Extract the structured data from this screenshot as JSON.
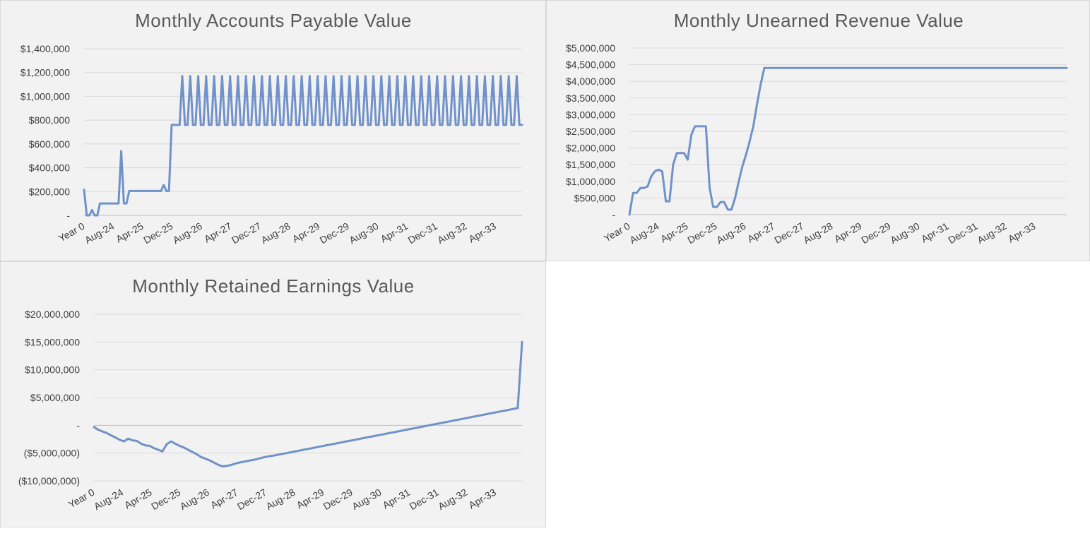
{
  "colors": {
    "line": "#7092c8",
    "panel_bg": "#f2f2f2",
    "grid": "#d9d9d9",
    "text": "#404040",
    "title": "#595959"
  },
  "chart_data": [
    {
      "type": "line",
      "title": "Monthly Accounts Payable Value",
      "ylim": [
        0,
        1400000
      ],
      "y_ticks": [
        0,
        200000,
        400000,
        600000,
        800000,
        1000000,
        1200000,
        1400000
      ],
      "y_tick_labels": [
        "-",
        "$200,000",
        "$400,000",
        "$600,000",
        "$800,000",
        "$1,000,000",
        "$1,200,000",
        "$1,400,000"
      ],
      "x_tick_labels": [
        "Year 0",
        "Aug-24",
        "Apr-25",
        "Dec-25",
        "Aug-26",
        "Apr-27",
        "Dec-27",
        "Aug-28",
        "Apr-29",
        "Dec-29",
        "Aug-30",
        "Apr-31",
        "Dec-31",
        "Aug-32",
        "Apr-33"
      ],
      "grid": true,
      "series": [
        {
          "values": [
            215000,
            0,
            0,
            45000,
            0,
            0,
            100000,
            100000,
            100000,
            100000,
            100000,
            100000,
            100000,
            100000,
            540000,
            100000,
            100000,
            205000,
            205000,
            205000,
            205000,
            205000,
            205000,
            205000,
            205000,
            205000,
            205000,
            205000,
            205000,
            205000,
            255000,
            205000,
            205000,
            760000,
            760000,
            760000,
            760000,
            1170000,
            760000,
            760000,
            1170000,
            760000,
            760000,
            1170000,
            760000,
            760000,
            1170000,
            760000,
            760000,
            1170000,
            760000,
            760000,
            1170000,
            760000,
            760000,
            1170000,
            760000,
            760000,
            1170000,
            760000,
            760000,
            1170000,
            760000,
            760000,
            1170000,
            760000,
            760000,
            1170000,
            760000,
            760000,
            1170000,
            760000,
            760000,
            1170000,
            760000,
            760000,
            1170000,
            760000,
            760000,
            1170000,
            760000,
            760000,
            1170000,
            760000,
            760000,
            1170000,
            760000,
            760000,
            1170000,
            760000,
            760000,
            1170000,
            760000,
            760000,
            1170000,
            760000,
            760000,
            1170000,
            760000,
            760000,
            1170000,
            760000,
            760000,
            1170000,
            760000,
            760000,
            1170000,
            760000,
            760000,
            1170000,
            760000,
            760000,
            1170000,
            760000,
            760000,
            1170000,
            760000,
            760000,
            1170000,
            760000,
            760000,
            1170000,
            760000,
            760000,
            1170000,
            760000,
            760000,
            1170000,
            760000,
            760000,
            1170000,
            760000,
            760000,
            1170000,
            760000,
            760000,
            1170000,
            760000,
            760000,
            1170000,
            760000,
            760000,
            1170000,
            760000,
            760000,
            1170000,
            760000,
            760000,
            1170000,
            760000,
            760000,
            1170000,
            760000,
            760000,
            1170000,
            760000,
            760000,
            1170000,
            760000,
            760000,
            1170000,
            760000,
            760000,
            1170000,
            760000,
            760000
          ]
        }
      ]
    },
    {
      "type": "line",
      "title": "Monthly Unearned Revenue Value",
      "ylim": [
        0,
        5000000
      ],
      "y_ticks": [
        0,
        500000,
        1000000,
        1500000,
        2000000,
        2500000,
        3000000,
        3500000,
        4000000,
        4500000,
        5000000
      ],
      "y_tick_labels": [
        "-",
        "$500,000",
        "$1,000,000",
        "$1,500,000",
        "$2,000,000",
        "$2,500,000",
        "$3,000,000",
        "$3,500,000",
        "$4,000,000",
        "$4,500,000",
        "$5,000,000"
      ],
      "x_tick_labels": [
        "Year 0",
        "Aug-24",
        "Apr-25",
        "Dec-25",
        "Aug-26",
        "Apr-27",
        "Dec-27",
        "Aug-28",
        "Apr-29",
        "Dec-29",
        "Aug-30",
        "Apr-31",
        "Dec-31",
        "Aug-32",
        "Apr-33"
      ],
      "grid": true,
      "series": [
        {
          "values": [
            0,
            650000,
            650000,
            800000,
            800000,
            850000,
            1150000,
            1300000,
            1350000,
            1300000,
            400000,
            400000,
            1500000,
            1850000,
            1850000,
            1850000,
            1650000,
            2400000,
            2650000,
            2650000,
            2650000,
            2650000,
            800000,
            230000,
            230000,
            380000,
            380000,
            150000,
            150000,
            500000,
            1000000,
            1450000,
            1800000,
            2200000,
            2650000,
            3300000,
            3900000,
            4400000
          ]
        }
      ]
    },
    {
      "type": "line",
      "title": "Monthly Retained Earnings Value",
      "ylim": [
        -10000000,
        20000000
      ],
      "y_ticks": [
        -10000000,
        -5000000,
        0,
        5000000,
        10000000,
        15000000,
        20000000
      ],
      "y_tick_labels": [
        "($10,000,000)",
        "($5,000,000)",
        "-",
        "$5,000,000",
        "$10,000,000",
        "$15,000,000",
        "$20,000,000"
      ],
      "x_tick_labels": [
        "Year 0",
        "Aug-24",
        "Apr-25",
        "Dec-25",
        "Aug-26",
        "Apr-27",
        "Dec-27",
        "Aug-28",
        "Apr-29",
        "Dec-29",
        "Aug-30",
        "Apr-31",
        "Dec-31",
        "Aug-32",
        "Apr-33"
      ],
      "grid": true,
      "series": [
        {
          "values": [
            -300000,
            -800000,
            -1100000,
            -1400000,
            -1800000,
            -2200000,
            -2600000,
            -2900000,
            -2400000,
            -2700000,
            -2800000,
            -3300000,
            -3600000,
            -3700000,
            -4100000,
            -4400000,
            -4700000,
            -3400000,
            -2900000,
            -3300000,
            -3700000,
            -4000000,
            -4400000,
            -4800000,
            -5200000,
            -5700000,
            -6000000,
            -6300000,
            -6700000,
            -7100000,
            -7400000,
            -7300000,
            -7150000,
            -6900000,
            -6700000,
            -6550000,
            -6400000,
            -6250000,
            -6100000,
            -5900000,
            -5700000,
            -5550000,
            -5450000,
            -5300000,
            -5150000,
            -5000000,
            -4850000,
            -4700000,
            -4550000,
            -4400000,
            -4250000,
            -4100000,
            -3950000,
            -3800000,
            -3650000,
            -3500000,
            -3350000,
            -3200000,
            -3050000,
            -2900000,
            -2750000,
            -2600000,
            -2450000,
            -2300000,
            -2150000,
            -2000000,
            -1850000,
            -1700000,
            -1550000,
            -1400000,
            -1250000,
            -1100000,
            -950000,
            -800000,
            -650000,
            -500000,
            -350000,
            -200000,
            -50000,
            100000,
            250000,
            400000,
            550000,
            700000,
            850000,
            1000000,
            1150000,
            1300000,
            1450000,
            1600000,
            1750000,
            1900000,
            2050000,
            2200000,
            2350000,
            2500000,
            2650000,
            2800000,
            2950000,
            3100000,
            15000000
          ]
        }
      ]
    }
  ]
}
